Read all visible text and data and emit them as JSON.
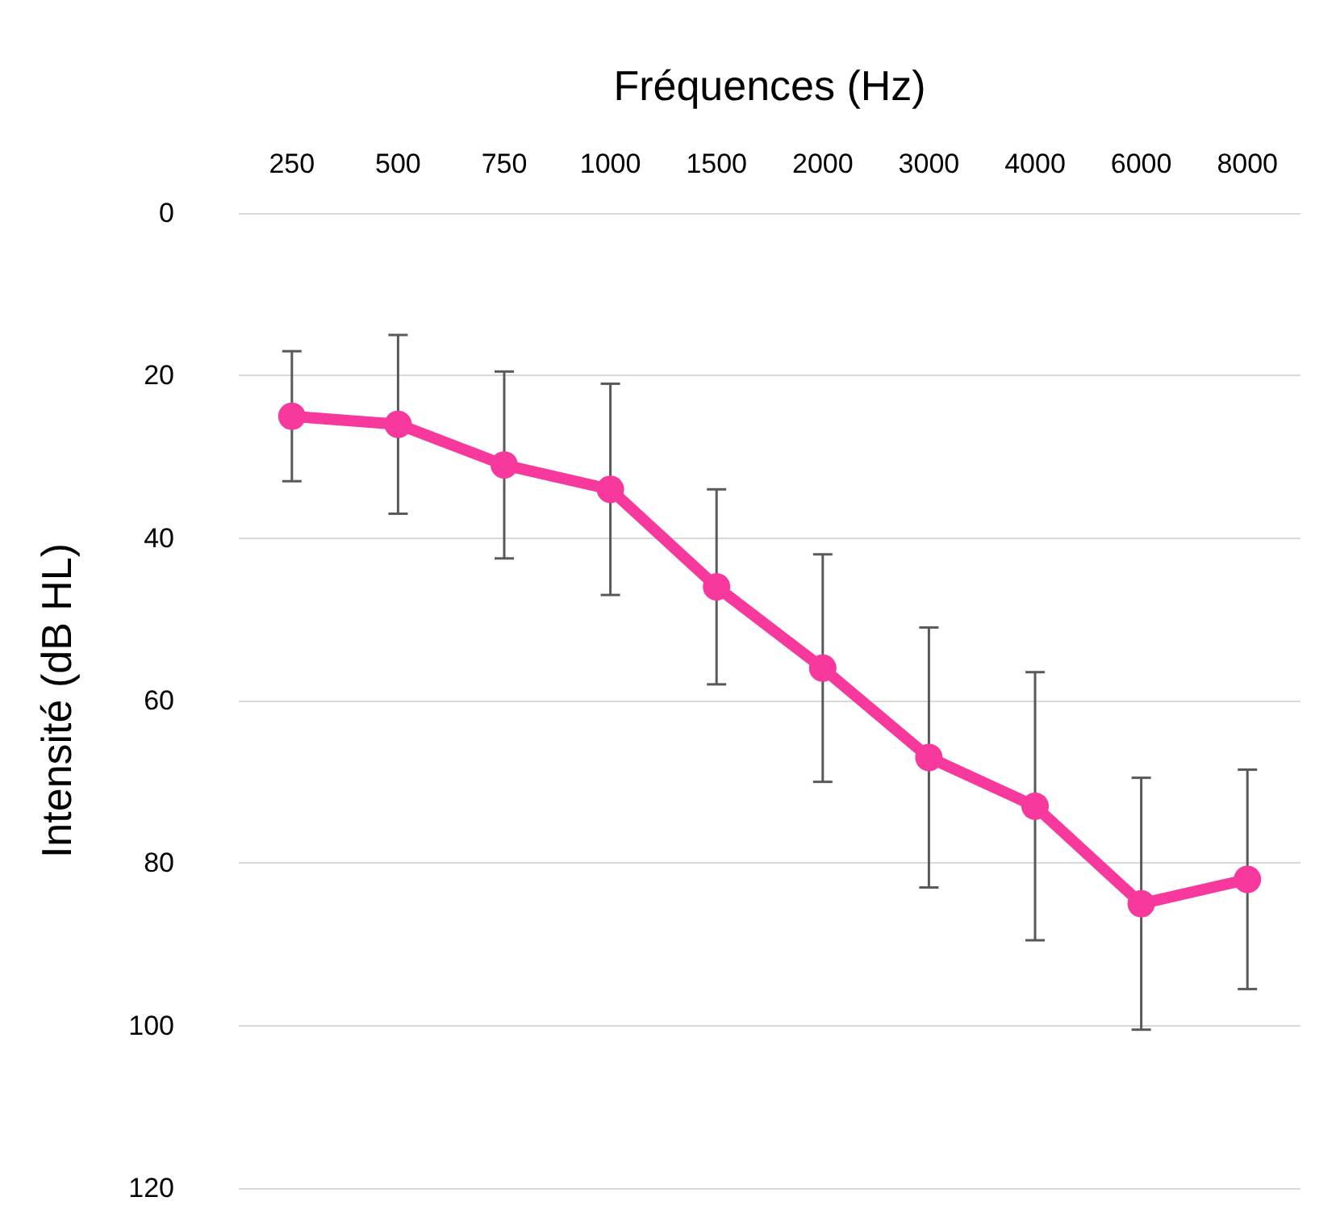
{
  "chart_data": {
    "type": "line",
    "xlabel": "Fréquences (Hz)",
    "ylabel": "Intensité (dB HL)",
    "categories": [
      "250",
      "500",
      "750",
      "1000",
      "1500",
      "2000",
      "3000",
      "4000",
      "6000",
      "8000"
    ],
    "series": [
      {
        "color": "#f7399d",
        "values": [
          25,
          26,
          31,
          34,
          46,
          56,
          67,
          73,
          85,
          82
        ],
        "errors": [
          8,
          11,
          11.5,
          13,
          12,
          14,
          16,
          16.5,
          15.5,
          13.5
        ]
      }
    ],
    "ylim": [
      120,
      0
    ],
    "yticks": [
      0,
      20,
      40,
      60,
      80,
      100,
      120
    ],
    "grid": "y",
    "marker": "circle",
    "line_style": "solid"
  }
}
